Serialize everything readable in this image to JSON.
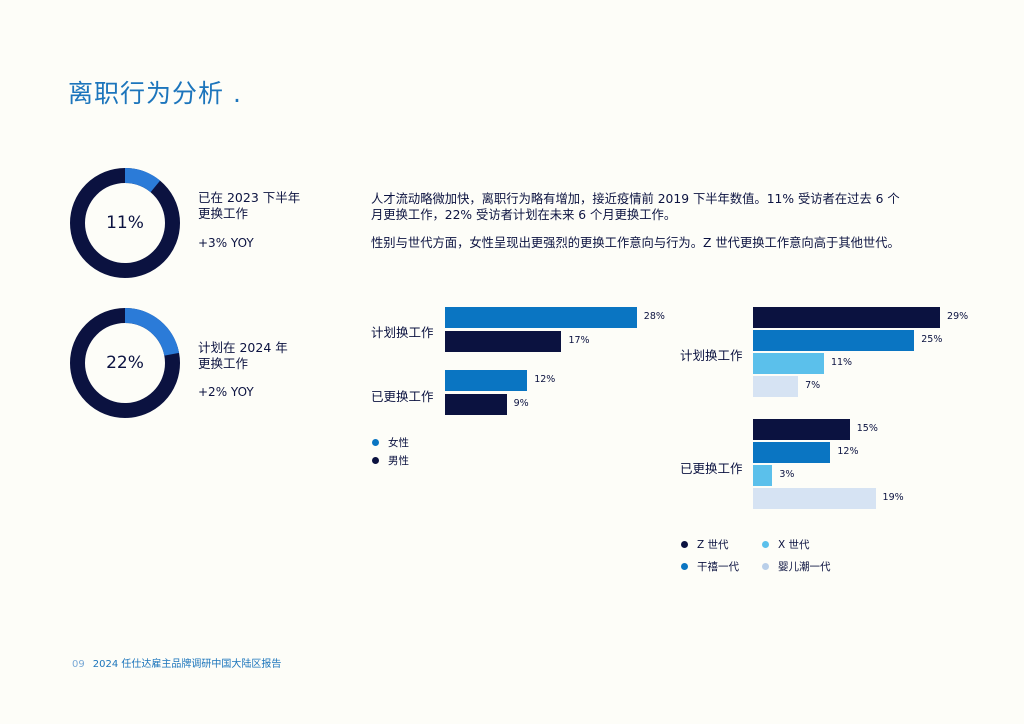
{
  "page_title": "离职行为分析 .",
  "stats": [
    {
      "value": "11%",
      "label": "已在 2023 下半年\n更换工作",
      "yoy": "+3% YOY",
      "fraction": 0.11
    },
    {
      "value": "22%",
      "label": "计划在 2024 年\n更换工作",
      "yoy": "+2% YOY",
      "fraction": 0.22
    }
  ],
  "intro": [
    "人才流动略微加快，离职行为略有增加，接近疫情前 2019 下半年数值。11% 受访者在过去 6 个月更换工作，22% 受访者计划在未来 6 个月更换工作。",
    "性别与世代方面，女性呈现出更强烈的更换工作意向与行为。Z 世代更换工作意向高于其他世代。"
  ],
  "colors": {
    "accent": "#1c75bc",
    "navy": "#0b1240",
    "female": "#0a75c2",
    "male": "#0b1240",
    "gen_z": "#0b1240",
    "millennial": "#0a75c2",
    "gen_x": "#5bc0eb",
    "boomer": "#d6e3f3",
    "donut_fill": "#2b7bd8"
  },
  "chart_data": [
    {
      "type": "bar",
      "orientation": "horizontal",
      "categories": [
        "计划换工作",
        "已更换工作"
      ],
      "series": [
        {
          "name": "女性",
          "values": [
            28,
            12
          ]
        },
        {
          "name": "男性",
          "values": [
            17,
            9
          ]
        }
      ],
      "value_labels": [
        [
          "28%",
          "12%"
        ],
        [
          "17%",
          "9%"
        ]
      ],
      "legend_position": "bottom-left"
    },
    {
      "type": "bar",
      "orientation": "horizontal",
      "categories": [
        "计划换工作",
        "已更换工作"
      ],
      "series": [
        {
          "name": "Z 世代",
          "values": [
            29,
            15
          ]
        },
        {
          "name": "干禧一代",
          "values": [
            25,
            12
          ]
        },
        {
          "name": "X 世代",
          "values": [
            11,
            3
          ]
        },
        {
          "name": "婴儿潮一代",
          "values": [
            7,
            19
          ]
        }
      ],
      "value_labels": [
        [
          "29%",
          "15%"
        ],
        [
          "25%",
          "12%"
        ],
        [
          "11%",
          "3%"
        ],
        [
          "7%",
          "19%"
        ]
      ],
      "legend_position": "bottom-left"
    }
  ],
  "footer": {
    "page": "09",
    "text": "2024 任仕达雇主品牌调研中国大陆区报告"
  }
}
